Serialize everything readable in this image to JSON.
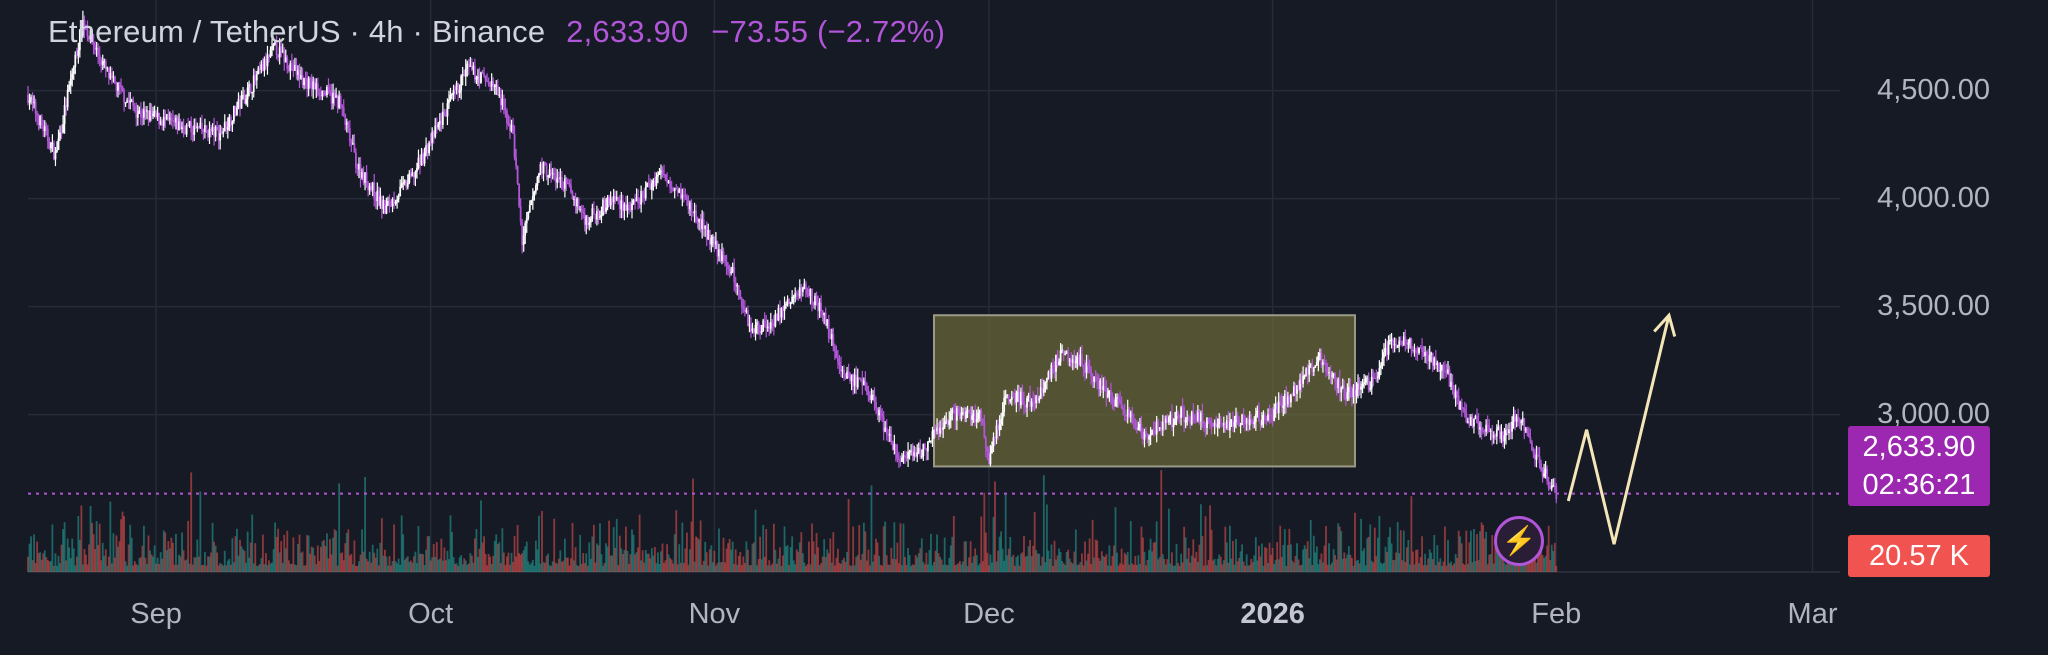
{
  "header": {
    "symbol": "Ethereum / TetherUS · 4h · Binance",
    "last_price": "2,633.90",
    "change": "−73.55 (−2.72%)"
  },
  "price_tag": {
    "price": "2,633.90",
    "countdown": "02:36:21"
  },
  "volume_tag": {
    "value": "20.57 K"
  },
  "colors": {
    "accent": "#9c27b0",
    "bull": "#ffffff",
    "bear": "#b156d8",
    "volume_up": "#26a69a",
    "volume_down": "#ef5350",
    "box_fill": "#6b6a3a",
    "projection": "#f5e6b8"
  },
  "icons": {
    "alert": "lightning-icon"
  },
  "chart_data": {
    "type": "candlestick",
    "title": "Ethereum / TetherUS · 4h · Binance",
    "ylim": [
      2350,
      4850
    ],
    "y_ticks": [
      {
        "label": "4,500.00",
        "value": 4500
      },
      {
        "label": "4,000.00",
        "value": 4000
      },
      {
        "label": "3,500.00",
        "value": 3500
      },
      {
        "label": "3,000.00",
        "value": 3000
      }
    ],
    "x_ticks": [
      {
        "label": "Sep",
        "date": "2025-09-01"
      },
      {
        "label": "Oct",
        "date": "2025-10-01"
      },
      {
        "label": "Nov",
        "date": "2025-11-01"
      },
      {
        "label": "Dec",
        "date": "2025-12-01"
      },
      {
        "label": "2026",
        "date": "2026-01-01",
        "bold": true
      },
      {
        "label": "Feb",
        "date": "2026-02-01"
      },
      {
        "label": "Mar",
        "date": "2026-03-01"
      }
    ],
    "x_range": [
      "2025-08-18",
      "2026-03-04"
    ],
    "price_path": [
      [
        "2025-08-18",
        4480
      ],
      [
        "2025-08-21",
        4200
      ],
      [
        "2025-08-24",
        4820
      ],
      [
        "2025-08-27",
        4550
      ],
      [
        "2025-08-30",
        4400
      ],
      [
        "2025-09-04",
        4330
      ],
      [
        "2025-09-08",
        4300
      ],
      [
        "2025-09-12",
        4560
      ],
      [
        "2025-09-14",
        4700
      ],
      [
        "2025-09-17",
        4550
      ],
      [
        "2025-09-21",
        4450
      ],
      [
        "2025-09-23",
        4150
      ],
      [
        "2025-09-26",
        3950
      ],
      [
        "2025-09-29",
        4100
      ],
      [
        "2025-10-02",
        4350
      ],
      [
        "2025-10-05",
        4600
      ],
      [
        "2025-10-08",
        4520
      ],
      [
        "2025-10-10",
        4300
      ],
      [
        "2025-10-11",
        3800
      ],
      [
        "2025-10-13",
        4150
      ],
      [
        "2025-10-16",
        4050
      ],
      [
        "2025-10-18",
        3900
      ],
      [
        "2025-10-21",
        4000
      ],
      [
        "2025-10-23",
        3950
      ],
      [
        "2025-10-26",
        4120
      ],
      [
        "2025-10-28",
        4050
      ],
      [
        "2025-10-31",
        3850
      ],
      [
        "2025-11-03",
        3650
      ],
      [
        "2025-11-05",
        3400
      ],
      [
        "2025-11-07",
        3420
      ],
      [
        "2025-11-11",
        3600
      ],
      [
        "2025-11-13",
        3450
      ],
      [
        "2025-11-15",
        3200
      ],
      [
        "2025-11-18",
        3100
      ],
      [
        "2025-11-21",
        2800
      ],
      [
        "2025-11-23",
        2800
      ],
      [
        "2025-11-27",
        3000
      ],
      [
        "2025-11-30",
        3000
      ],
      [
        "2025-12-01",
        2800
      ],
      [
        "2025-12-03",
        3100
      ],
      [
        "2025-12-06",
        3050
      ],
      [
        "2025-12-09",
        3300
      ],
      [
        "2025-12-11",
        3250
      ],
      [
        "2025-12-14",
        3100
      ],
      [
        "2025-12-18",
        2900
      ],
      [
        "2025-12-22",
        3000
      ],
      [
        "2025-12-26",
        2950
      ],
      [
        "2025-12-30",
        2980
      ],
      [
        "2026-01-01",
        3000
      ],
      [
        "2026-01-03",
        3100
      ],
      [
        "2026-01-06",
        3260
      ],
      [
        "2026-01-09",
        3100
      ],
      [
        "2026-01-12",
        3150
      ],
      [
        "2026-01-14",
        3350
      ],
      [
        "2026-01-17",
        3300
      ],
      [
        "2026-01-20",
        3200
      ],
      [
        "2026-01-22",
        2980
      ],
      [
        "2026-01-24",
        2950
      ],
      [
        "2026-01-26",
        2900
      ],
      [
        "2026-01-28",
        3000
      ],
      [
        "2026-01-30",
        2780
      ],
      [
        "2026-02-01",
        2634
      ]
    ],
    "range_box": {
      "start": "2025-11-25",
      "end": "2026-01-10",
      "low": 2760,
      "high": 3460
    },
    "last_price_line": 2633.9,
    "projection": [
      [
        "2026-02-01",
        2600
      ],
      [
        "2026-02-03",
        2930
      ],
      [
        "2026-02-06",
        2400
      ],
      [
        "2026-02-12",
        3460
      ]
    ]
  }
}
